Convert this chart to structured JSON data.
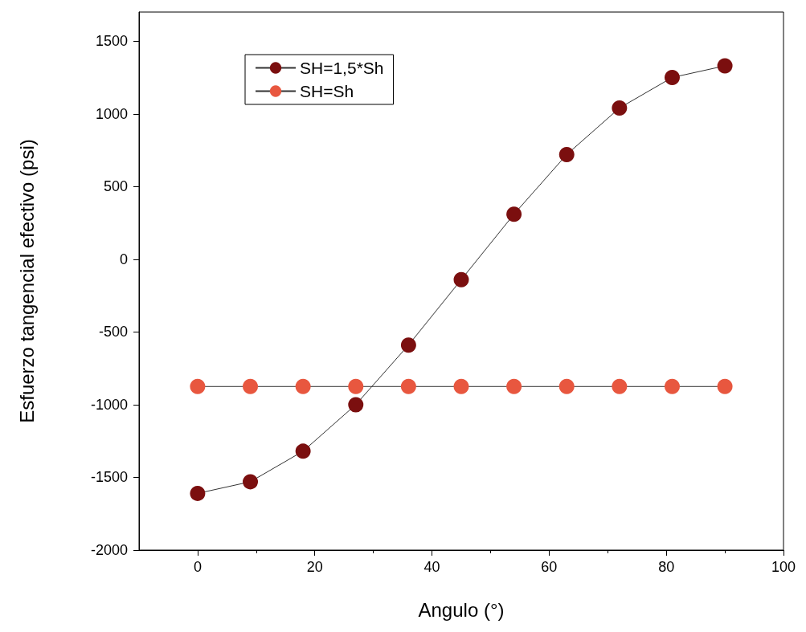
{
  "chart_data": {
    "type": "line",
    "xlabel": "Angulo (°)",
    "ylabel": "Esfuerzo tangencial efectivo (psi)",
    "x": [
      0,
      9,
      18,
      27,
      36,
      45,
      54,
      63,
      72,
      81,
      90
    ],
    "series": [
      {
        "name": "SH=1,5*Sh",
        "color": "#7b0f0f",
        "values": [
          -1610,
          -1530,
          -1320,
          -1000,
          -590,
          -140,
          310,
          720,
          1040,
          1250,
          1330
        ]
      },
      {
        "name": "SH=Sh",
        "color": "#e8573f",
        "values": [
          -875,
          -875,
          -875,
          -875,
          -875,
          -875,
          -875,
          -875,
          -875,
          -875,
          -875
        ]
      }
    ],
    "xlim": [
      -10,
      100
    ],
    "xticks": [
      0,
      20,
      40,
      60,
      80,
      100
    ],
    "ylim": [
      -2000,
      1700
    ],
    "yticks": [
      -2000,
      -1500,
      -1000,
      -500,
      0,
      500,
      1000,
      1500
    ],
    "grid": false,
    "legend": "top left",
    "marker": "circle",
    "line_style": "solid"
  }
}
